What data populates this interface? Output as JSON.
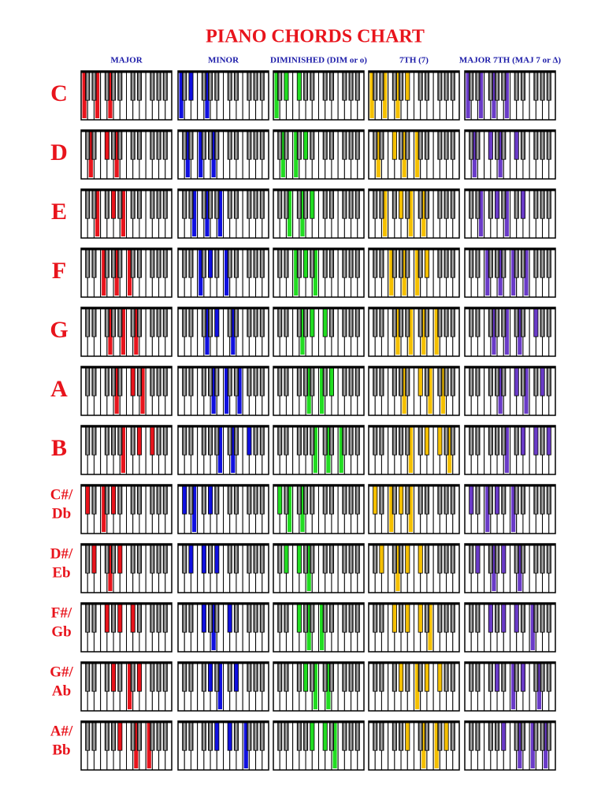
{
  "title": "PIANO CHORDS CHART",
  "columns": [
    "MAJOR",
    "MINOR",
    "DIMINISHED (DIM or o)",
    "7TH (7)",
    "MAJOR 7TH (MAJ 7 or Δ)"
  ],
  "rows": [
    [
      "C"
    ],
    [
      "D"
    ],
    [
      "E"
    ],
    [
      "F"
    ],
    [
      "G"
    ],
    [
      "A"
    ],
    [
      "B"
    ],
    [
      "C#/",
      "Db"
    ],
    [
      "D#/",
      "Eb"
    ],
    [
      "F#/",
      "Gb"
    ],
    [
      "G#/",
      "Ab"
    ],
    [
      "A#/",
      "Bb"
    ]
  ]
}
